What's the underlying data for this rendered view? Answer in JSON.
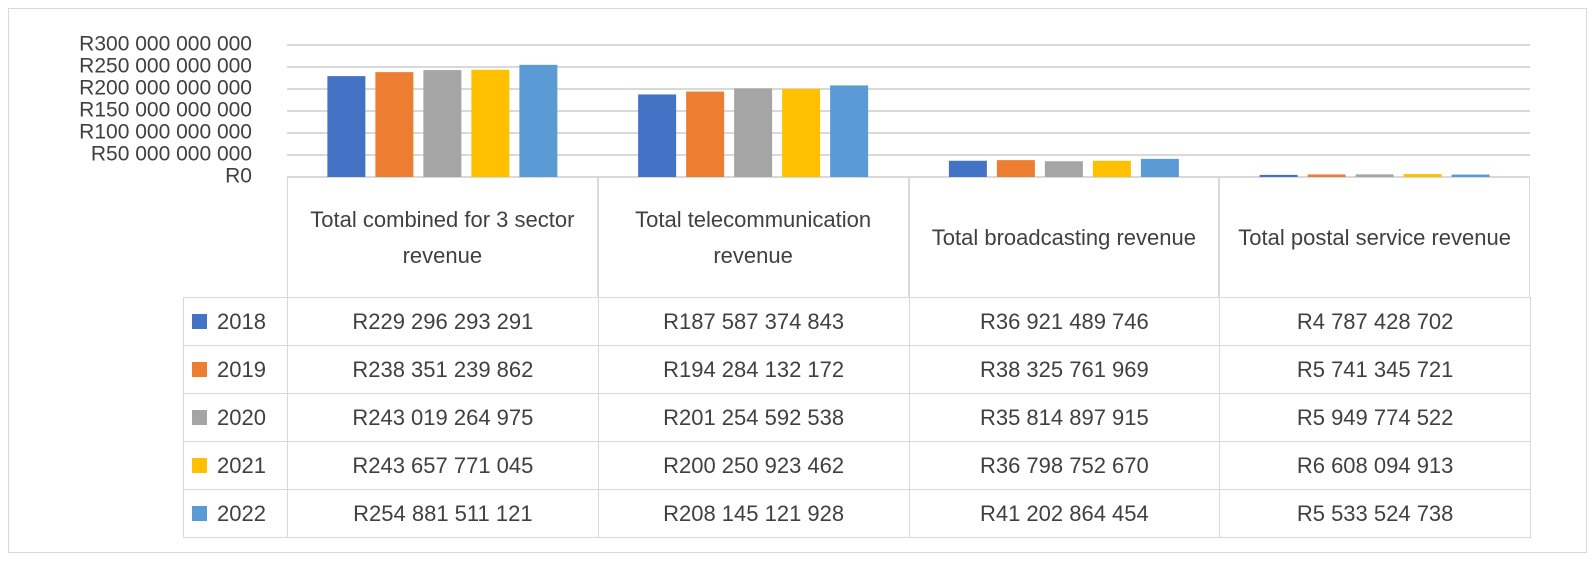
{
  "chart_data": {
    "type": "bar",
    "categories": [
      "Total combined for 3 sector revenue",
      "Total telecommunication revenue",
      "Total broadcasting revenue",
      "Total postal service revenue"
    ],
    "series": [
      {
        "name": "2018",
        "color": "#4472c4",
        "values": [
          229296293291,
          187587374843,
          36921489746,
          4787428702
        ],
        "value_labels": [
          "R229 296 293 291",
          "R187 587 374 843",
          "R36 921 489 746",
          "R4 787 428 702"
        ]
      },
      {
        "name": "2019",
        "color": "#ed7d31",
        "values": [
          238351239862,
          194284132172,
          38325761969,
          5741345721
        ],
        "value_labels": [
          "R238 351 239 862",
          "R194 284 132 172",
          "R38 325 761 969",
          "R5 741 345 721"
        ]
      },
      {
        "name": "2020",
        "color": "#a5a5a5",
        "values": [
          243019264975,
          201254592538,
          35814897915,
          5949774522
        ],
        "value_labels": [
          "R243 019 264 975",
          "R201 254 592 538",
          "R35 814 897 915",
          "R5 949 774 522"
        ]
      },
      {
        "name": "2021",
        "color": "#ffc000",
        "values": [
          243657771045,
          200250923462,
          36798752670,
          6608094913
        ],
        "value_labels": [
          "R243 657 771 045",
          "R200 250 923 462",
          "R36 798 752 670",
          "R6 608 094 913"
        ]
      },
      {
        "name": "2022",
        "color": "#5b9bd5",
        "values": [
          254881511121,
          208145121928,
          41202864454,
          5533524738
        ],
        "value_labels": [
          "R254 881 511 121",
          "R208 145 121 928",
          "R41 202 864 454",
          "R5 533 524 738"
        ]
      }
    ],
    "ylim": [
      0,
      300000000000
    ],
    "yticks": [
      {
        "value": 0,
        "label": "R0"
      },
      {
        "value": 50000000000,
        "label": "R50 000 000 000"
      },
      {
        "value": 100000000000,
        "label": "R100 000 000 000"
      },
      {
        "value": 150000000000,
        "label": "R150 000 000 000"
      },
      {
        "value": 200000000000,
        "label": "R200 000 000 000"
      },
      {
        "value": 250000000000,
        "label": "R250 000 000 000"
      },
      {
        "value": 300000000000,
        "label": "R300 000 000 000"
      }
    ],
    "grid": true
  }
}
